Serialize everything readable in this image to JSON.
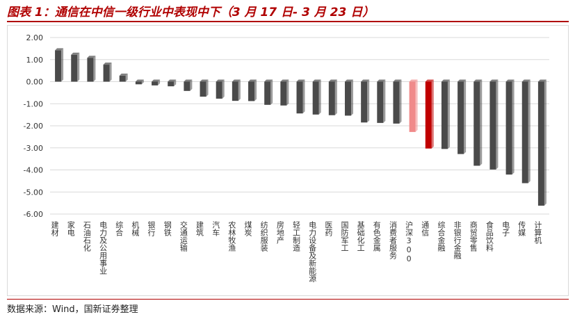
{
  "title": "图表 1：通信在中信一级行业中表现中下（3 月 17 日- 3 月 23 日）",
  "source": "数据来源：Wind，国新证券整理",
  "colors": {
    "default_bar": "#4a4a4a",
    "highlight_light": "#f08a8a",
    "highlight_dark": "#c00000",
    "title": "#b00000"
  },
  "chart_data": {
    "type": "bar",
    "title": "",
    "xlabel": "",
    "ylabel": "",
    "ylim": [
      -6,
      2
    ],
    "yticks": [
      "2.00",
      "1.00",
      "0.00",
      "-1.00",
      "-2.00",
      "-3.00",
      "-4.00",
      "-5.00",
      "-6.00"
    ],
    "grid": true,
    "legend": "none",
    "categories": [
      "建材",
      "家电",
      "石油石化",
      "电力及公用事业",
      "综合",
      "机械",
      "银行",
      "钢铁",
      "交通运输",
      "建筑",
      "汽车",
      "农林牧渔",
      "煤炭",
      "纺织服装",
      "房地产",
      "轻工制造",
      "电力设备及新能源",
      "医药",
      "国防军工",
      "基础化工",
      "有色金属",
      "消费者服务",
      "沪深300",
      "通信",
      "综合金融",
      "非银行金融",
      "商贸零售",
      "食品饮料",
      "电子",
      "传媒",
      "计算机"
    ],
    "values": [
      1.42,
      1.22,
      1.08,
      0.77,
      0.27,
      -0.12,
      -0.17,
      -0.21,
      -0.42,
      -0.68,
      -0.77,
      -0.87,
      -0.88,
      -1.05,
      -1.08,
      -1.44,
      -1.49,
      -1.52,
      -1.54,
      -1.85,
      -1.87,
      -1.9,
      -2.28,
      -3.03,
      -3.05,
      -3.28,
      -3.81,
      -3.98,
      -4.21,
      -4.6,
      -5.62
    ],
    "highlight": {
      "沪深300": "light",
      "通信": "dark"
    }
  }
}
